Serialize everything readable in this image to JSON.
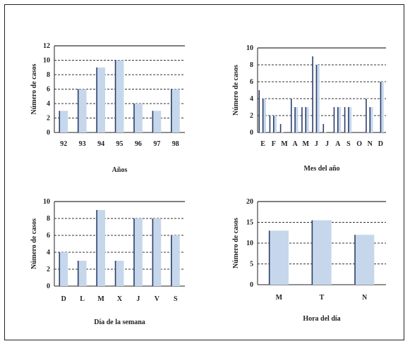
{
  "colors": {
    "bar_fill": "#c6d7ec",
    "bar_edge": "#2b3f6a",
    "grid": "#333333",
    "axis": "#222222"
  },
  "chart_data": [
    {
      "id": "years",
      "type": "bar",
      "categories": [
        "92",
        "93",
        "94",
        "95",
        "96",
        "97",
        "98"
      ],
      "values": [
        3,
        6,
        9,
        10,
        4,
        3,
        6
      ],
      "xlabel": "Años",
      "ylabel": "Número de casos",
      "ylim": [
        0,
        12
      ],
      "yticks": [
        "0",
        "2",
        "4",
        "6",
        "8",
        "10",
        "12"
      ],
      "grid": true
    },
    {
      "id": "months",
      "type": "bar",
      "categories": [
        "E",
        "F",
        "M",
        "A",
        "M",
        "J",
        "J",
        "A",
        "S",
        "O",
        "N",
        "D"
      ],
      "series": [
        {
          "values": [
            5,
            2,
            1,
            4,
            3,
            9,
            1,
            3,
            3,
            0,
            4,
            0
          ]
        },
        {
          "values": [
            4,
            2,
            0,
            3,
            3,
            8,
            0,
            3,
            3,
            0,
            3,
            6
          ]
        }
      ],
      "xlabel": "Mes del año",
      "ylabel": "Número de casos",
      "ylim": [
        0,
        10
      ],
      "yticks": [
        "0",
        "2",
        "4",
        "6",
        "8",
        "10"
      ],
      "grid": true
    },
    {
      "id": "weekdays",
      "type": "bar",
      "categories": [
        "D",
        "L",
        "M",
        "X",
        "J",
        "V",
        "S"
      ],
      "values": [
        4,
        3,
        9,
        3,
        8,
        8,
        6
      ],
      "xlabel": "Día de la semana",
      "ylabel": "Número de casos",
      "ylim": [
        0,
        10
      ],
      "yticks": [
        "0",
        "2",
        "4",
        "6",
        "8",
        "10"
      ],
      "grid": true
    },
    {
      "id": "hours",
      "type": "bar",
      "categories": [
        "M",
        "T",
        "N"
      ],
      "values": [
        13,
        15.5,
        12
      ],
      "xlabel": "Hora del día",
      "ylabel": "Número de casos",
      "ylim": [
        0,
        20
      ],
      "yticks": [
        "0",
        "5",
        "10",
        "15",
        "20"
      ],
      "grid": true
    }
  ]
}
